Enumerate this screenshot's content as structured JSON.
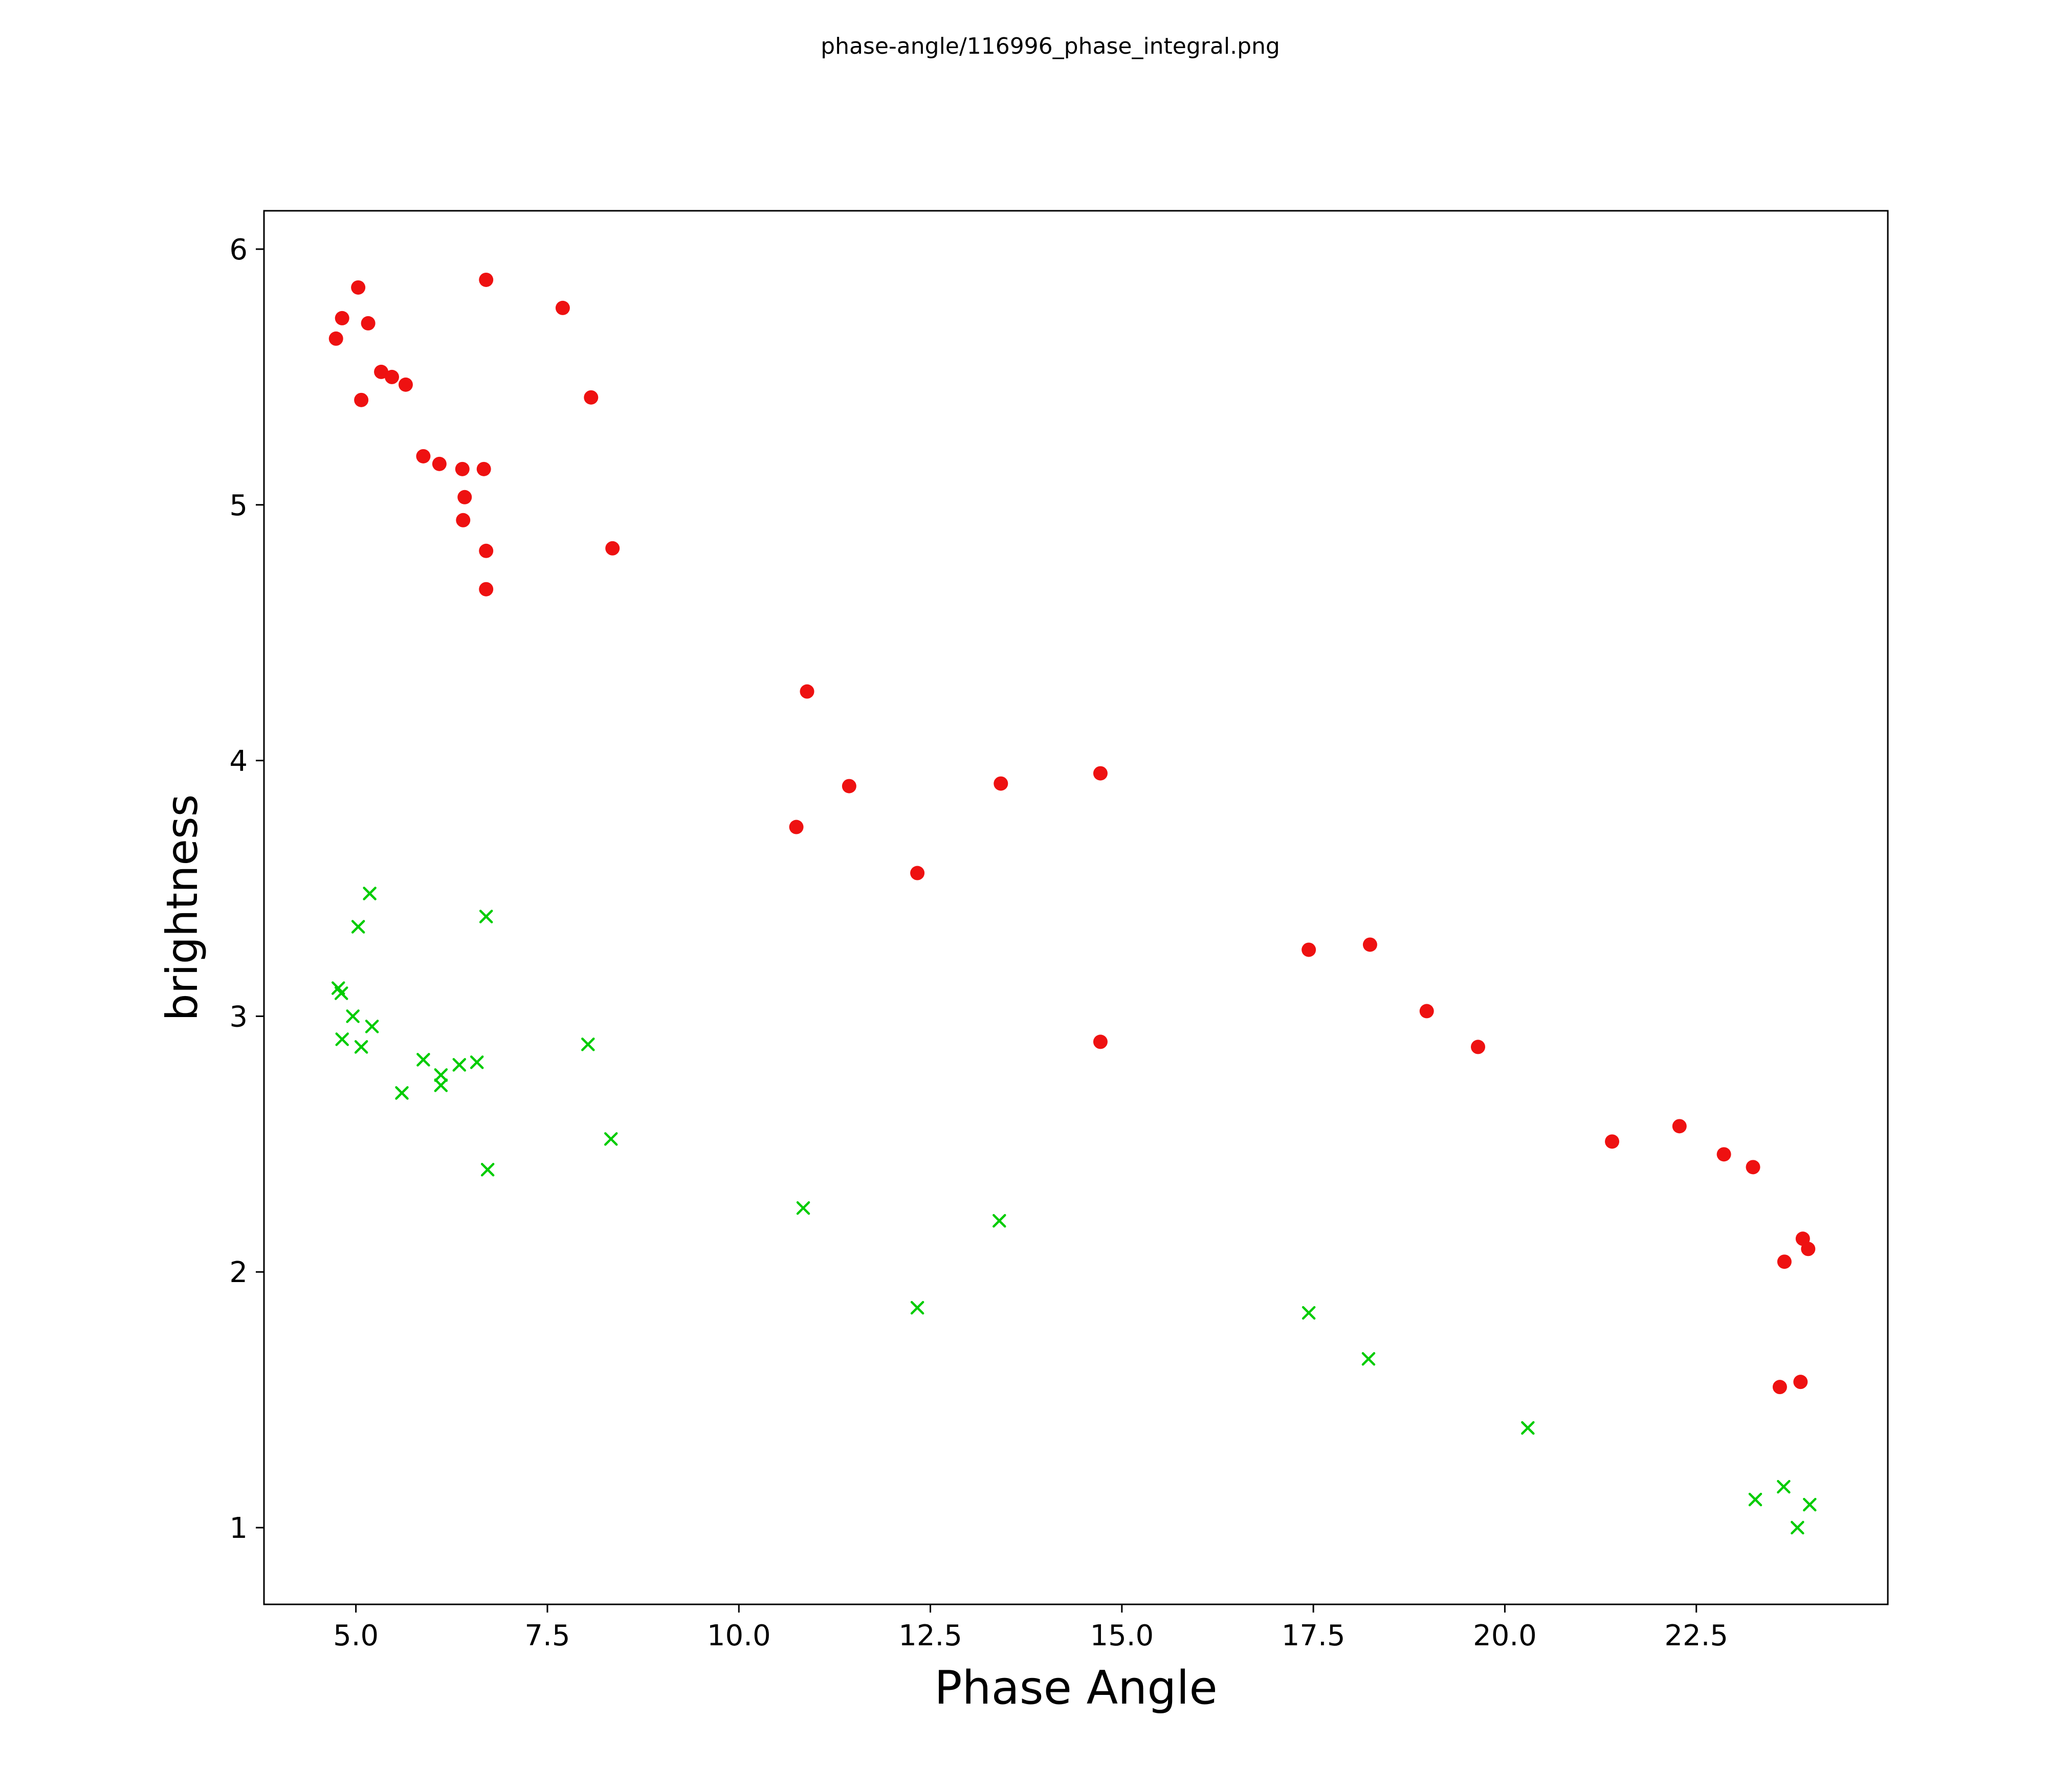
{
  "chart_data": {
    "type": "scatter",
    "title": "phase-angle/116996_phase_integral.png",
    "xlabel": "Phase Angle",
    "ylabel": "brightness",
    "xlim": [
      3.8,
      25.0
    ],
    "ylim": [
      0.7,
      6.15
    ],
    "grid": false,
    "legend": "none",
    "xticks": [
      {
        "value": 5.0,
        "label": "5.0"
      },
      {
        "value": 7.5,
        "label": "7.5"
      },
      {
        "value": 10.0,
        "label": "10.0"
      },
      {
        "value": 12.5,
        "label": "12.5"
      },
      {
        "value": 15.0,
        "label": "15.0"
      },
      {
        "value": 17.5,
        "label": "17.5"
      },
      {
        "value": 20.0,
        "label": "20.0"
      },
      {
        "value": 22.5,
        "label": "22.5"
      }
    ],
    "yticks": [
      {
        "value": 1,
        "label": "1"
      },
      {
        "value": 2,
        "label": "2"
      },
      {
        "value": 3,
        "label": "3"
      },
      {
        "value": 4,
        "label": "4"
      },
      {
        "value": 5,
        "label": "5"
      },
      {
        "value": 6,
        "label": "6"
      }
    ],
    "series": [
      {
        "name": "red-circles",
        "marker": "circle",
        "color": "#ee1111",
        "marker_radius": 14,
        "points": [
          [
            4.82,
            5.73
          ],
          [
            4.74,
            5.65
          ],
          [
            5.03,
            5.85
          ],
          [
            5.07,
            5.41
          ],
          [
            5.16,
            5.71
          ],
          [
            5.33,
            5.52
          ],
          [
            5.47,
            5.5
          ],
          [
            5.65,
            5.47
          ],
          [
            5.88,
            5.19
          ],
          [
            6.09,
            5.16
          ],
          [
            6.39,
            5.14
          ],
          [
            6.42,
            5.03
          ],
          [
            6.4,
            4.94
          ],
          [
            6.67,
            5.14
          ],
          [
            6.7,
            4.82
          ],
          [
            6.7,
            4.67
          ],
          [
            6.7,
            5.88
          ],
          [
            7.7,
            5.77
          ],
          [
            8.07,
            5.42
          ],
          [
            8.35,
            4.83
          ],
          [
            10.75,
            3.74
          ],
          [
            10.89,
            4.27
          ],
          [
            11.44,
            3.9
          ],
          [
            12.33,
            3.56
          ],
          [
            13.42,
            3.91
          ],
          [
            14.72,
            3.95
          ],
          [
            14.72,
            2.9
          ],
          [
            17.44,
            3.26
          ],
          [
            18.24,
            3.28
          ],
          [
            18.98,
            3.02
          ],
          [
            19.65,
            2.88
          ],
          [
            21.4,
            2.51
          ],
          [
            22.28,
            2.57
          ],
          [
            22.86,
            2.46
          ],
          [
            23.24,
            2.41
          ],
          [
            23.65,
            2.04
          ],
          [
            23.89,
            2.13
          ],
          [
            23.96,
            2.09
          ],
          [
            23.59,
            1.55
          ],
          [
            23.86,
            1.57
          ]
        ]
      },
      {
        "name": "green-crosses",
        "marker": "x",
        "color": "#00cc00",
        "marker_halfsize": 11,
        "points": [
          [
            4.77,
            3.11
          ],
          [
            4.81,
            3.09
          ],
          [
            4.82,
            2.91
          ],
          [
            4.96,
            3.0
          ],
          [
            5.03,
            3.35
          ],
          [
            5.07,
            2.88
          ],
          [
            5.18,
            3.48
          ],
          [
            5.21,
            2.96
          ],
          [
            5.6,
            2.7
          ],
          [
            5.88,
            2.83
          ],
          [
            6.11,
            2.77
          ],
          [
            6.11,
            2.73
          ],
          [
            6.35,
            2.81
          ],
          [
            6.58,
            2.82
          ],
          [
            6.7,
            3.39
          ],
          [
            6.72,
            2.4
          ],
          [
            8.03,
            2.89
          ],
          [
            8.33,
            2.52
          ],
          [
            10.84,
            2.25
          ],
          [
            12.33,
            1.86
          ],
          [
            13.4,
            2.2
          ],
          [
            17.44,
            1.84
          ],
          [
            18.22,
            1.66
          ],
          [
            20.3,
            1.39
          ],
          [
            23.27,
            1.11
          ],
          [
            23.64,
            1.16
          ],
          [
            23.82,
            1.0
          ],
          [
            23.98,
            1.09
          ]
        ]
      }
    ]
  }
}
